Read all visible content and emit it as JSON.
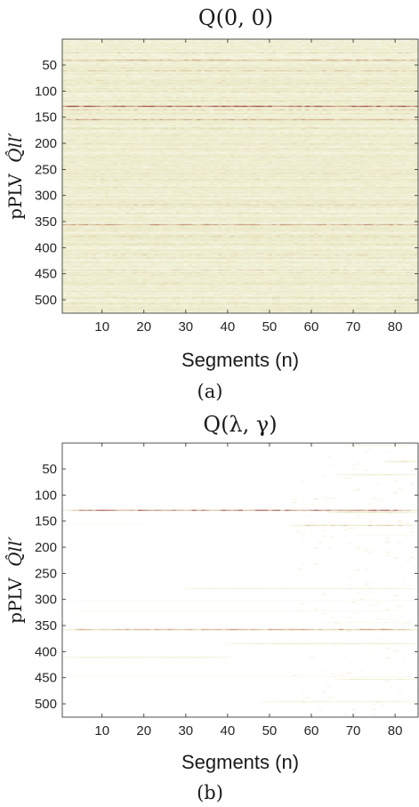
{
  "chart_data": [
    {
      "type": "heatmap",
      "panel": "(a)",
      "title": "Q(0, 0)",
      "xlabel": "Segments (n)",
      "ylabel": "pPLV",
      "ylabel_math": "Q̂ll′",
      "xlim": [
        0.5,
        85.5
      ],
      "ylim": [
        0.5,
        525.5
      ],
      "y_reversed": true,
      "x_ticks": [
        10,
        20,
        30,
        40,
        50,
        60,
        70,
        80
      ],
      "y_ticks": [
        50,
        100,
        150,
        200,
        250,
        300,
        350,
        400,
        450,
        500
      ],
      "n_segments": 85,
      "n_pplv": 525,
      "colormap": [
        "#ffffff",
        "#f3f2da",
        "#e9e7c3",
        "#c99a7b",
        "#8b2323"
      ],
      "background_level": 0.35,
      "strong_rows": [
        {
          "row": 3,
          "value": 0.75
        },
        {
          "row": 8,
          "value": 0.55
        },
        {
          "row": 26,
          "value": 0.55
        },
        {
          "row": 40,
          "value": 0.7
        },
        {
          "row": 60,
          "value": 0.6
        },
        {
          "row": 105,
          "value": 0.55
        },
        {
          "row": 128,
          "value": 0.95
        },
        {
          "row": 135,
          "value": 0.6
        },
        {
          "row": 142,
          "value": 0.5
        },
        {
          "row": 154,
          "value": 0.75
        },
        {
          "row": 175,
          "value": 0.55
        },
        {
          "row": 208,
          "value": 0.5
        },
        {
          "row": 256,
          "value": 0.5
        },
        {
          "row": 296,
          "value": 0.55
        },
        {
          "row": 318,
          "value": 0.55
        },
        {
          "row": 330,
          "value": 0.5
        },
        {
          "row": 355,
          "value": 0.75
        },
        {
          "row": 377,
          "value": 0.55
        },
        {
          "row": 388,
          "value": 0.6
        },
        {
          "row": 413,
          "value": 0.55
        },
        {
          "row": 442,
          "value": 0.55
        },
        {
          "row": 450,
          "value": 0.65
        },
        {
          "row": 468,
          "value": 0.5
        },
        {
          "row": 497,
          "value": 0.5
        }
      ],
      "caption": "(a)"
    },
    {
      "type": "heatmap",
      "panel": "(b)",
      "title": "Q(λ, γ)",
      "xlabel": "Segments (n)",
      "ylabel": "pPLV",
      "ylabel_math": "Q̂ll′",
      "xlim": [
        0.5,
        85.5
      ],
      "ylim": [
        0.5,
        525.5
      ],
      "y_reversed": true,
      "x_ticks": [
        10,
        20,
        30,
        40,
        50,
        60,
        70,
        80
      ],
      "y_ticks": [
        50,
        100,
        150,
        200,
        250,
        300,
        350,
        400,
        450,
        500
      ],
      "n_segments": 85,
      "n_pplv": 525,
      "colormap": [
        "#ffffff",
        "#f3f2da",
        "#e9e7c3",
        "#c99a7b",
        "#8b2323"
      ],
      "background_level": 0.0,
      "bands": [
        {
          "row": 3,
          "from": 68,
          "to": 85,
          "value": 0.8
        },
        {
          "row": 35,
          "from": 78,
          "to": 85,
          "value": 0.65
        },
        {
          "row": 60,
          "from": 66,
          "to": 85,
          "value": 0.45
        },
        {
          "row": 128,
          "from": 1,
          "to": 85,
          "value": 0.9
        },
        {
          "row": 132,
          "from": 64,
          "to": 85,
          "value": 0.55
        },
        {
          "row": 153,
          "from": 1,
          "to": 20,
          "value": 0.4
        },
        {
          "row": 157,
          "from": 55,
          "to": 85,
          "value": 0.6
        },
        {
          "row": 175,
          "from": 70,
          "to": 85,
          "value": 0.45
        },
        {
          "row": 278,
          "from": 30,
          "to": 85,
          "value": 0.35
        },
        {
          "row": 300,
          "from": 1,
          "to": 85,
          "value": 0.4
        },
        {
          "row": 320,
          "from": 1,
          "to": 85,
          "value": 0.4
        },
        {
          "row": 342,
          "from": 62,
          "to": 85,
          "value": 0.45
        },
        {
          "row": 357,
          "from": 1,
          "to": 85,
          "value": 0.75
        },
        {
          "row": 384,
          "from": 40,
          "to": 85,
          "value": 0.45
        },
        {
          "row": 410,
          "from": 1,
          "to": 40,
          "value": 0.3
        },
        {
          "row": 446,
          "from": 1,
          "to": 85,
          "value": 0.55
        },
        {
          "row": 452,
          "from": 66,
          "to": 85,
          "value": 0.45
        },
        {
          "row": 495,
          "from": 48,
          "to": 85,
          "value": 0.35
        }
      ],
      "caption": "(b)"
    }
  ]
}
